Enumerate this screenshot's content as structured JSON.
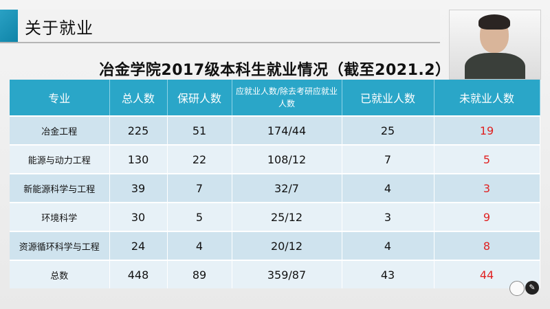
{
  "slide": {
    "section_title": "关于就业",
    "heading": "冶金学院2017级本科生就业情况（截至2021.2）"
  },
  "table": {
    "headers": [
      "专业",
      "总人数",
      "保研人数",
      "应就业人数/除去考研应就业人数",
      "已就业人数",
      "未就业人数"
    ],
    "rows": [
      [
        "冶金工程",
        "225",
        "51",
        "174/44",
        "25",
        "19"
      ],
      [
        "能源与动力工程",
        "130",
        "22",
        "108/12",
        "7",
        "5"
      ],
      [
        "新能源科学与工程",
        "39",
        "7",
        "32/7",
        "4",
        "3"
      ],
      [
        "环境科学",
        "30",
        "5",
        "25/12",
        "3",
        "9"
      ],
      [
        "资源循环科学与工程",
        "24",
        "4",
        "20/12",
        "4",
        "8"
      ],
      [
        "总数",
        "448",
        "89",
        "359/87",
        "43",
        "44"
      ]
    ]
  },
  "colors": {
    "header_bg": "#2aa6c8",
    "row_odd": "#cfe3ee",
    "row_even": "#e7f1f7",
    "highlight": "#e02020",
    "accent": "#1a94ba"
  },
  "icons": [
    "presenter-webcam",
    "circle-icon",
    "pen-icon"
  ]
}
